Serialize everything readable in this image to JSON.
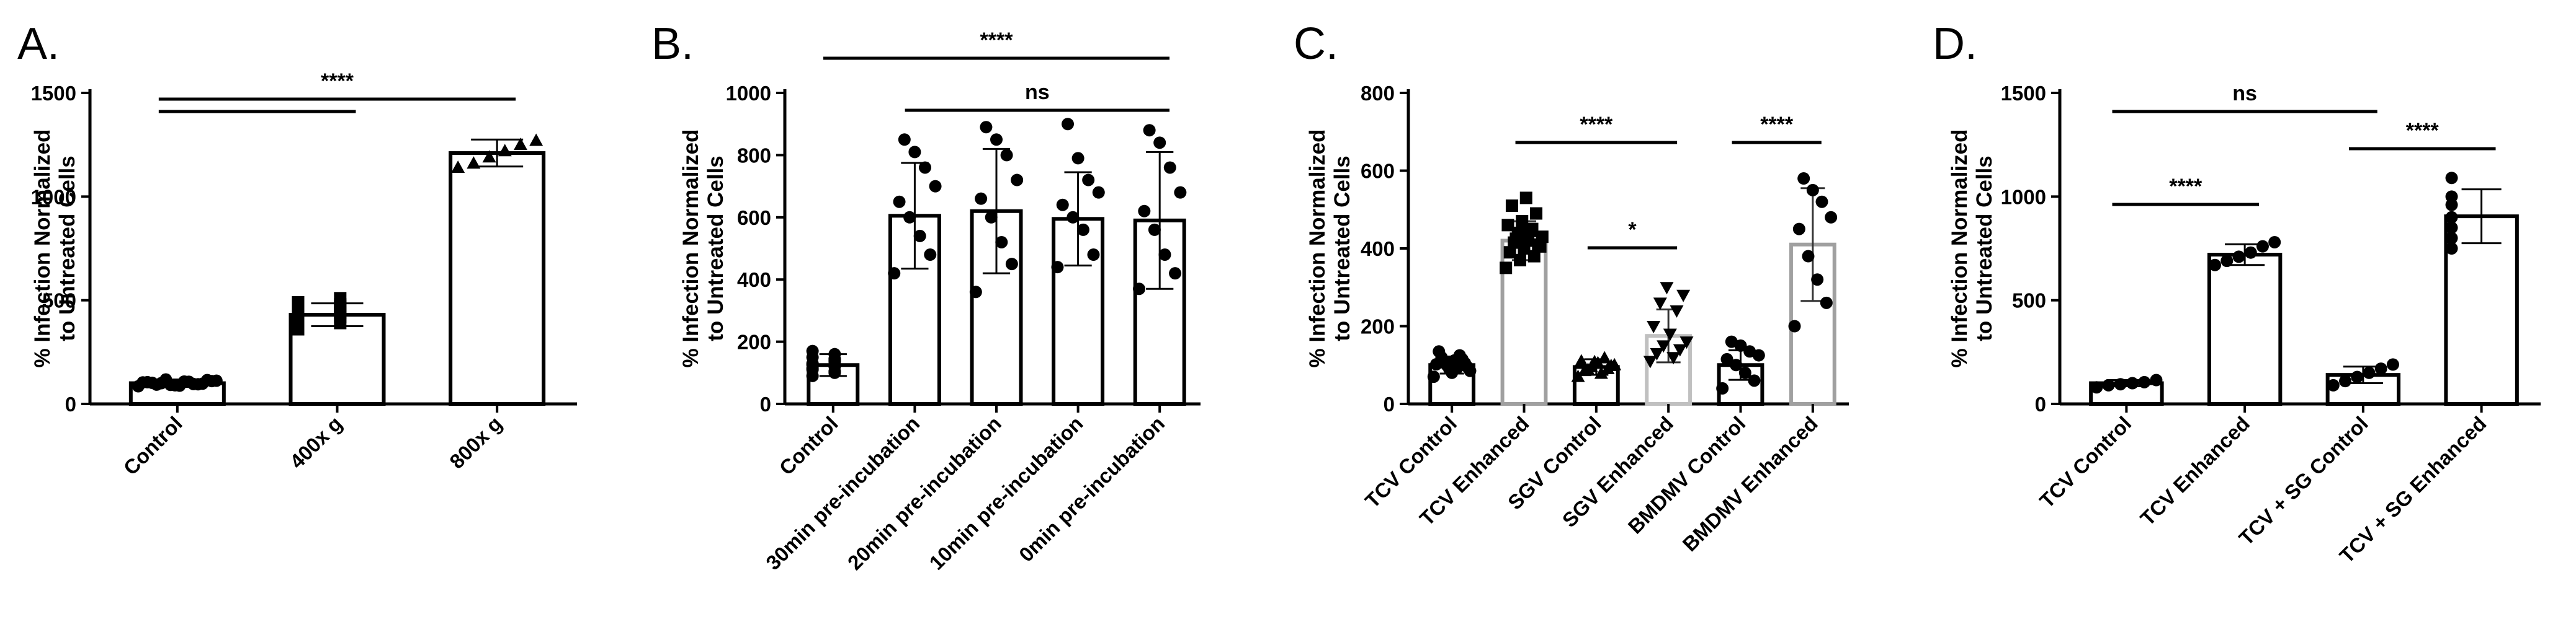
{
  "chart_data": [
    {
      "panel": "A.",
      "type": "bar",
      "ylabel": [
        "% Infection Normalized",
        "to Untreated Cells"
      ],
      "ylim": [
        0,
        1500
      ],
      "yticks": [
        0,
        500,
        1000,
        1500
      ],
      "categories": [
        "Control",
        "400x g",
        "800x g"
      ],
      "values": [
        100,
        430,
        1210
      ],
      "errors": [
        18,
        55,
        65
      ],
      "bar_colors": [
        "#000000",
        "#000000",
        "#000000"
      ],
      "markers": [
        "circle",
        "square",
        "triangle-up"
      ],
      "points": [
        [
          85,
          92,
          98,
          102,
          108,
          112,
          118,
          95,
          105,
          88,
          110,
          100,
          96,
          104,
          90,
          115,
          93,
          107
        ],
        [
          360,
          390,
          410,
          420,
          430,
          440,
          450,
          470,
          490,
          510,
          400,
          455,
          425,
          480
        ],
        [
          1140,
          1160,
          1190,
          1220,
          1250,
          1270
        ]
      ],
      "significance": [
        {
          "from": 0,
          "to": 2,
          "label": "****",
          "level": 1
        },
        {
          "from": 0,
          "to": 1,
          "label": "",
          "level": 0
        }
      ]
    },
    {
      "panel": "B.",
      "type": "bar",
      "ylabel": [
        "% Infection Normalized",
        "to Untreated Cells"
      ],
      "ylim": [
        0,
        1000
      ],
      "yticks": [
        0,
        200,
        400,
        600,
        800,
        1000
      ],
      "categories": [
        "Control",
        "30min pre-incubation",
        "20min pre-incubation",
        "10min pre-incubation",
        "0min pre-incubation"
      ],
      "values": [
        125,
        605,
        620,
        595,
        590
      ],
      "errors": [
        35,
        170,
        200,
        150,
        220
      ],
      "bar_colors": [
        "#000000",
        "#000000",
        "#000000",
        "#000000",
        "#000000"
      ],
      "markers": [
        "circle",
        "circle",
        "circle",
        "circle",
        "circle"
      ],
      "points": [
        [
          90,
          100,
          110,
          120,
          130,
          140,
          150,
          160,
          170,
          105,
          125,
          135,
          115,
          145
        ],
        [
          420,
          480,
          540,
          600,
          650,
          700,
          760,
          810,
          850
        ],
        [
          360,
          450,
          520,
          600,
          660,
          720,
          800,
          850,
          890
        ],
        [
          440,
          480,
          560,
          600,
          640,
          680,
          720,
          790,
          900
        ],
        [
          370,
          420,
          480,
          560,
          620,
          680,
          760,
          840,
          880
        ]
      ],
      "significance": [
        {
          "from": 0,
          "to": 4,
          "label": "****",
          "level": 1
        },
        {
          "from": 1,
          "to": 4,
          "label": "ns",
          "level": 0
        }
      ]
    },
    {
      "panel": "C.",
      "type": "bar",
      "ylabel": [
        "% Infection Normalized",
        "to Untreated Cells"
      ],
      "ylim": [
        0,
        800
      ],
      "yticks": [
        0,
        200,
        400,
        600,
        800
      ],
      "categories": [
        "TCV Control",
        "TCV Enhanced",
        "SGV Control",
        "SGV Enhanced",
        "BMDMV Control",
        "BMDMV Enhanced"
      ],
      "values": [
        100,
        420,
        95,
        175,
        100,
        410
      ],
      "errors": [
        22,
        50,
        20,
        68,
        38,
        145
      ],
      "bar_colors": [
        "#000000",
        "#a0a0a0",
        "#000000",
        "#c0c0c0",
        "#000000",
        "#a0a0a0"
      ],
      "markers": [
        "circle",
        "square",
        "triangle-up",
        "triangle-down",
        "circle",
        "circle"
      ],
      "points": [
        [
          70,
          80,
          85,
          90,
          95,
          100,
          105,
          110,
          115,
          120,
          125,
          135,
          92,
          102,
          112
        ],
        [
          350,
          370,
          380,
          390,
          400,
          410,
          415,
          420,
          430,
          440,
          450,
          460,
          470,
          490,
          510,
          530,
          405,
          425,
          445
        ],
        [
          70,
          78,
          85,
          90,
          95,
          100,
          105,
          110,
          118,
          88,
          98,
          108
        ],
        [
          110,
          120,
          130,
          140,
          150,
          160,
          180,
          200,
          240,
          260,
          280,
          300
        ],
        [
          40,
          60,
          80,
          100,
          115,
          125,
          135,
          150,
          160
        ],
        [
          200,
          260,
          320,
          380,
          450,
          480,
          520,
          550,
          580
        ]
      ],
      "significance": [
        {
          "from": 1,
          "to": 3,
          "label": "****",
          "level": 1
        },
        {
          "from": 2,
          "to": 3,
          "label": "*",
          "level": 0
        },
        {
          "from": 4,
          "to": 5,
          "label": "****",
          "level": 1
        }
      ]
    },
    {
      "panel": "D.",
      "type": "bar",
      "ylabel": [
        "% Infection Normalized",
        "to Untreated Cells"
      ],
      "ylim": [
        0,
        1500
      ],
      "yticks": [
        0,
        500,
        1000,
        1500
      ],
      "categories": [
        "TCV Control",
        "TCV Enhanced",
        "TCV + SG Control",
        "TCV + SG Enhanced"
      ],
      "values": [
        100,
        720,
        140,
        905
      ],
      "errors": [
        15,
        50,
        40,
        130
      ],
      "bar_colors": [
        "#000000",
        "#000000",
        "#000000",
        "#000000"
      ],
      "markers": [
        "circle",
        "circle",
        "circle",
        "circle"
      ],
      "points": [
        [
          80,
          90,
          95,
          100,
          105,
          115
        ],
        [
          670,
          690,
          710,
          730,
          760,
          780
        ],
        [
          90,
          110,
          130,
          150,
          170,
          190
        ],
        [
          750,
          800,
          850,
          900,
          960,
          1000,
          1090
        ]
      ],
      "significance": [
        {
          "from": 0,
          "to": 2,
          "label": "ns",
          "level": 2
        },
        {
          "from": 0,
          "to": 1,
          "label": "****",
          "level": 0
        },
        {
          "from": 2,
          "to": 3,
          "label": "****",
          "level": 1
        }
      ]
    }
  ]
}
